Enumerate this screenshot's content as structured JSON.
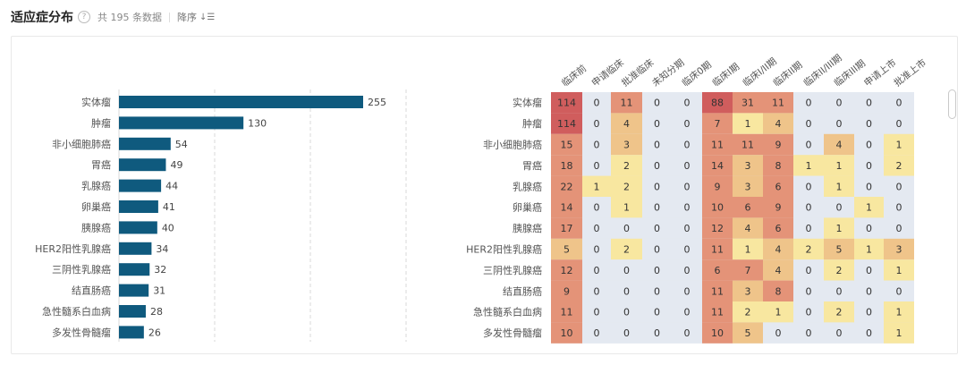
{
  "header": {
    "title": "适应症分布",
    "count_text": "共 195 条数据",
    "sort_label": "降序",
    "sort_icon": "sort-desc-icon",
    "help_icon": "question-circle-icon"
  },
  "chart_data": [
    {
      "type": "bar",
      "orientation": "horizontal",
      "categories": [
        "实体瘤",
        "肿瘤",
        "非小细胞肺癌",
        "胃癌",
        "乳腺癌",
        "卵巢癌",
        "胰腺癌",
        "HER2阳性乳腺癌",
        "三阴性乳腺癌",
        "结直肠癌",
        "急性髓系白血病",
        "多发性骨髓瘤"
      ],
      "values": [
        255,
        130,
        54,
        49,
        44,
        41,
        40,
        34,
        32,
        31,
        28,
        26
      ],
      "xlim": [
        0,
        295
      ],
      "grid": true,
      "bar_color": "#0f5a7e"
    },
    {
      "type": "heatmap",
      "rows": [
        "实体瘤",
        "肿瘤",
        "非小细胞肺癌",
        "胃癌",
        "乳腺癌",
        "卵巢癌",
        "胰腺癌",
        "HER2阳性乳腺癌",
        "三阴性乳腺癌",
        "结直肠癌",
        "急性髓系白血病",
        "多发性骨髓瘤"
      ],
      "columns": [
        "临床前",
        "申请临床",
        "批准临床",
        "未知分期",
        "临床0期",
        "临床I期",
        "临床I/II期",
        "临床II期",
        "临床II/III期",
        "临床III期",
        "申请上市",
        "批准上市"
      ],
      "values": [
        [
          114,
          0,
          11,
          0,
          0,
          88,
          31,
          11,
          0,
          0,
          0,
          0
        ],
        [
          114,
          0,
          4,
          0,
          0,
          7,
          1,
          4,
          0,
          0,
          0,
          0
        ],
        [
          15,
          0,
          3,
          0,
          0,
          11,
          11,
          9,
          0,
          4,
          0,
          1
        ],
        [
          18,
          0,
          2,
          0,
          0,
          14,
          3,
          8,
          1,
          1,
          0,
          2
        ],
        [
          22,
          1,
          2,
          0,
          0,
          9,
          3,
          6,
          0,
          1,
          0,
          0
        ],
        [
          14,
          0,
          1,
          0,
          0,
          10,
          6,
          9,
          0,
          0,
          1,
          0
        ],
        [
          17,
          0,
          0,
          0,
          0,
          12,
          4,
          6,
          0,
          1,
          0,
          0
        ],
        [
          5,
          0,
          2,
          0,
          0,
          11,
          1,
          4,
          2,
          5,
          1,
          3
        ],
        [
          12,
          0,
          0,
          0,
          0,
          6,
          7,
          4,
          0,
          2,
          0,
          1
        ],
        [
          9,
          0,
          0,
          0,
          0,
          11,
          3,
          8,
          0,
          0,
          0,
          0
        ],
        [
          11,
          0,
          0,
          0,
          0,
          11,
          2,
          1,
          0,
          2,
          0,
          1
        ],
        [
          10,
          0,
          0,
          0,
          0,
          10,
          5,
          0,
          0,
          0,
          0,
          1
        ]
      ],
      "colors": {
        "zero": "#e4e9f1",
        "low": "#f8e7a0",
        "mid": "#efc48a",
        "high": "#e49378",
        "top": "#d05d5d"
      }
    }
  ]
}
